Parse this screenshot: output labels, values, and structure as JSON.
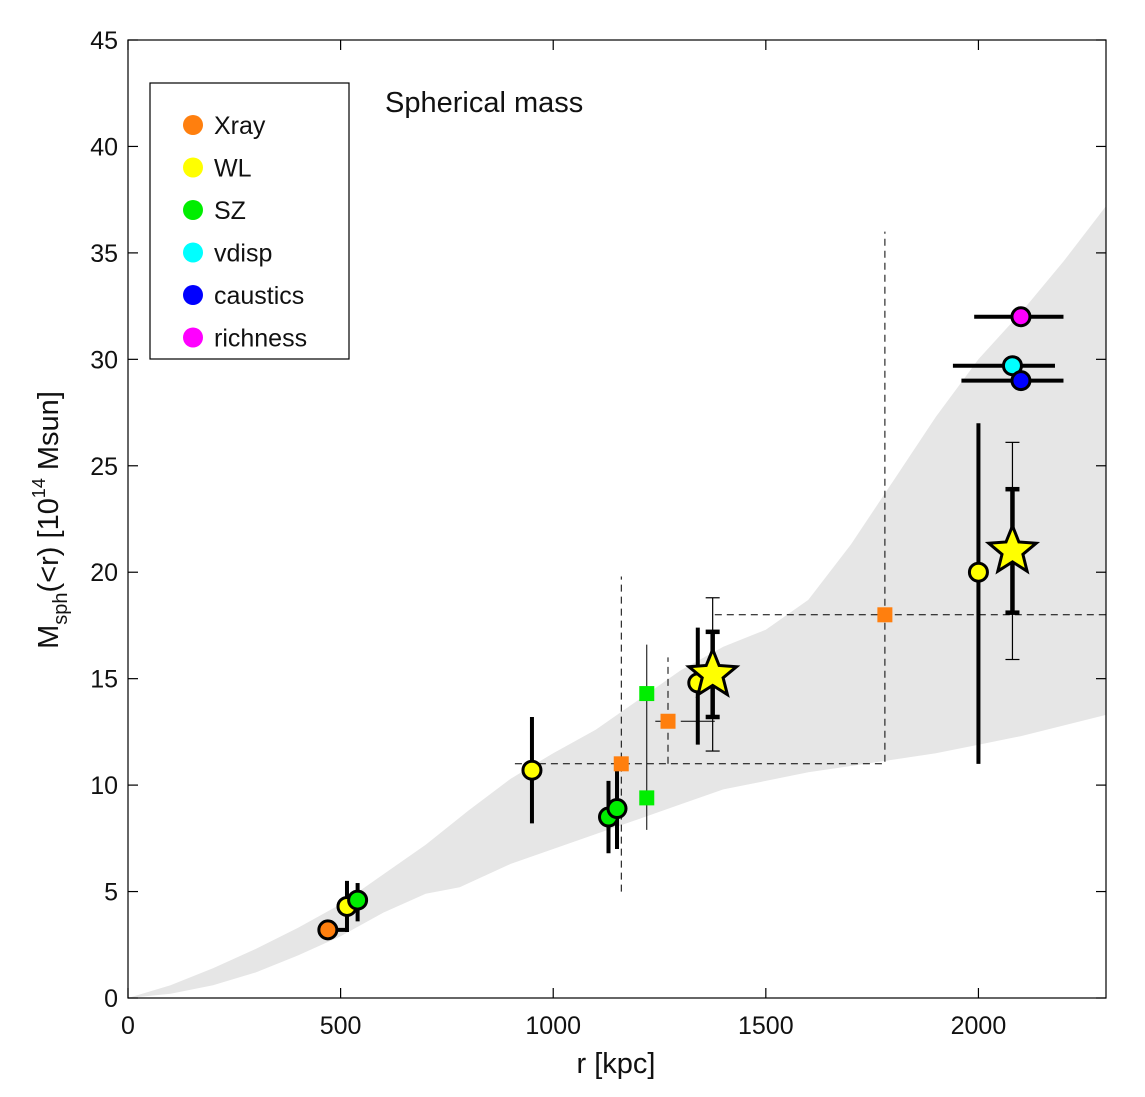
{
  "chart_data": {
    "type": "scatter",
    "title": "Spherical mass",
    "xlabel": "r [kpc]",
    "ylabel": {
      "base": "M",
      "sub": "sph",
      "mid": "(<r) [10",
      "sup": "14",
      "end": " Msun]"
    },
    "xlim": [
      0,
      2300
    ],
    "ylim": [
      0,
      45
    ],
    "xticks": [
      0,
      500,
      1000,
      1500,
      2000
    ],
    "yticks": [
      0,
      5,
      10,
      15,
      20,
      25,
      30,
      35,
      40,
      45
    ],
    "grid": false,
    "legend_position": "top-left",
    "legend": [
      {
        "label": "Xray",
        "color": "#ff7f0e"
      },
      {
        "label": "WL",
        "color": "#ffff00"
      },
      {
        "label": "SZ",
        "color": "#00ee00"
      },
      {
        "label": "vdisp",
        "color": "#00ffff"
      },
      {
        "label": "caustics",
        "color": "#0000ff"
      },
      {
        "label": "richness",
        "color": "#ff00ff"
      }
    ],
    "shaded_band": {
      "color": "#e6e6e6",
      "upper": [
        [
          0,
          0
        ],
        [
          100,
          0.6
        ],
        [
          200,
          1.4
        ],
        [
          300,
          2.3
        ],
        [
          400,
          3.3
        ],
        [
          500,
          4.4
        ],
        [
          600,
          5.8
        ],
        [
          700,
          7.2
        ],
        [
          800,
          8.8
        ],
        [
          900,
          10.3
        ],
        [
          1000,
          11.5
        ],
        [
          1100,
          12.6
        ],
        [
          1200,
          14.0
        ],
        [
          1300,
          15.4
        ],
        [
          1400,
          16.5
        ],
        [
          1500,
          17.3
        ],
        [
          1600,
          18.7
        ],
        [
          1700,
          21.3
        ],
        [
          1800,
          24.3
        ],
        [
          1900,
          27.3
        ],
        [
          2000,
          30.0
        ],
        [
          2100,
          32.2
        ],
        [
          2200,
          34.6
        ],
        [
          2300,
          37.2
        ]
      ],
      "lower": [
        [
          0,
          0
        ],
        [
          100,
          0.2
        ],
        [
          200,
          0.6
        ],
        [
          300,
          1.2
        ],
        [
          400,
          2.0
        ],
        [
          500,
          2.9
        ],
        [
          600,
          4.0
        ],
        [
          700,
          4.9
        ],
        [
          780,
          5.2
        ],
        [
          900,
          6.3
        ],
        [
          1000,
          7.0
        ],
        [
          1100,
          7.7
        ],
        [
          1200,
          8.4
        ],
        [
          1300,
          9.1
        ],
        [
          1400,
          9.8
        ],
        [
          1500,
          10.2
        ],
        [
          1600,
          10.6
        ],
        [
          1700,
          10.9
        ],
        [
          1800,
          11.2
        ],
        [
          1900,
          11.5
        ],
        [
          2000,
          11.9
        ],
        [
          2100,
          12.3
        ],
        [
          2200,
          12.8
        ],
        [
          2300,
          13.3
        ]
      ]
    },
    "series": [
      {
        "name": "Xray",
        "marker": "circle",
        "color": "#ff7f0e",
        "points": [
          {
            "x": 470,
            "y": 3.2,
            "xerr": [
              20,
              45
            ],
            "yerr": [
              0,
              0
            ]
          }
        ]
      },
      {
        "name": "WL",
        "marker": "circle",
        "color": "#ffff00",
        "points": [
          {
            "x": 515,
            "y": 4.3,
            "xerr": [
              0,
              0
            ],
            "yerr": [
              1.2,
              1.2
            ]
          },
          {
            "x": 950,
            "y": 10.7,
            "xerr": [
              0,
              0
            ],
            "yerr": [
              2.5,
              2.5
            ]
          },
          {
            "x": 1340,
            "y": 14.8,
            "xerr": [
              0,
              0
            ],
            "yerr": [
              2.9,
              2.6
            ]
          },
          {
            "x": 2000,
            "y": 20.0,
            "xerr": [
              0,
              0
            ],
            "yerr": [
              9.0,
              7.0
            ]
          }
        ]
      },
      {
        "name": "SZ",
        "marker": "circle",
        "color": "#00ee00",
        "points": [
          {
            "x": 540,
            "y": 4.6,
            "xerr": [
              0,
              0
            ],
            "yerr": [
              1.0,
              0.8
            ]
          },
          {
            "x": 1130,
            "y": 8.5,
            "xerr": [
              0,
              0
            ],
            "yerr": [
              1.7,
              1.7
            ]
          },
          {
            "x": 1150,
            "y": 8.9,
            "xerr": [
              0,
              0
            ],
            "yerr": [
              1.9,
              1.9
            ]
          }
        ]
      },
      {
        "name": "vdisp",
        "marker": "circle",
        "color": "#00ffff",
        "points": [
          {
            "x": 2080,
            "y": 29.7,
            "xerr": [
              140,
              100
            ],
            "yerr": [
              0,
              0
            ]
          }
        ]
      },
      {
        "name": "caustics",
        "marker": "circle",
        "color": "#0000ff",
        "points": [
          {
            "x": 2100,
            "y": 29.0,
            "xerr": [
              140,
              100
            ],
            "yerr": [
              0,
              0
            ]
          }
        ]
      },
      {
        "name": "richness",
        "marker": "circle",
        "color": "#ff00ff",
        "points": [
          {
            "x": 2100,
            "y": 32.0,
            "xerr": [
              110,
              100
            ],
            "yerr": [
              0,
              0
            ]
          }
        ]
      }
    ],
    "stars": [
      {
        "x": 1375,
        "y": 15.2,
        "color": "#ffff00",
        "yerr_thick": [
          2.0,
          2.0
        ],
        "yerr_thin": [
          3.6,
          3.6
        ]
      },
      {
        "x": 2080,
        "y": 21.0,
        "color": "#ffff00",
        "yerr_thick": [
          2.9,
          2.9
        ],
        "yerr_thin": [
          5.1,
          5.1
        ]
      }
    ],
    "squares": [
      {
        "x": 1160,
        "y": 11.0,
        "color": "#ff7f0e"
      },
      {
        "x": 1270,
        "y": 13.0,
        "color": "#ff7f0e"
      },
      {
        "x": 1780,
        "y": 18.0,
        "color": "#ff7f0e"
      },
      {
        "x": 1220,
        "y": 14.3,
        "color": "#00ee00"
      },
      {
        "x": 1220,
        "y": 9.4,
        "color": "#00ee00"
      }
    ],
    "whiskers_thin": [
      {
        "x": 1220,
        "y0": 7.9,
        "y1": 16.6
      },
      {
        "x": 1340,
        "y0": 13.0,
        "y1": 13.0,
        "x0": 1300,
        "x1": 1380
      }
    ],
    "dashed_lines": [
      {
        "points": [
          [
            910,
            11.0
          ],
          [
            1780,
            11.0
          ],
          [
            1780,
            36.0
          ]
        ]
      },
      {
        "points": [
          [
            1160,
            5.0
          ],
          [
            1160,
            19.8
          ]
        ]
      },
      {
        "points": [
          [
            1240,
            13.0
          ],
          [
            1270,
            13.0
          ],
          [
            1270,
            16.0
          ]
        ]
      },
      {
        "points": [
          [
            1270,
            11.0
          ],
          [
            1270,
            13.0
          ]
        ]
      },
      {
        "points": [
          [
            1380,
            18.0
          ],
          [
            2300,
            18.0
          ]
        ]
      }
    ]
  }
}
